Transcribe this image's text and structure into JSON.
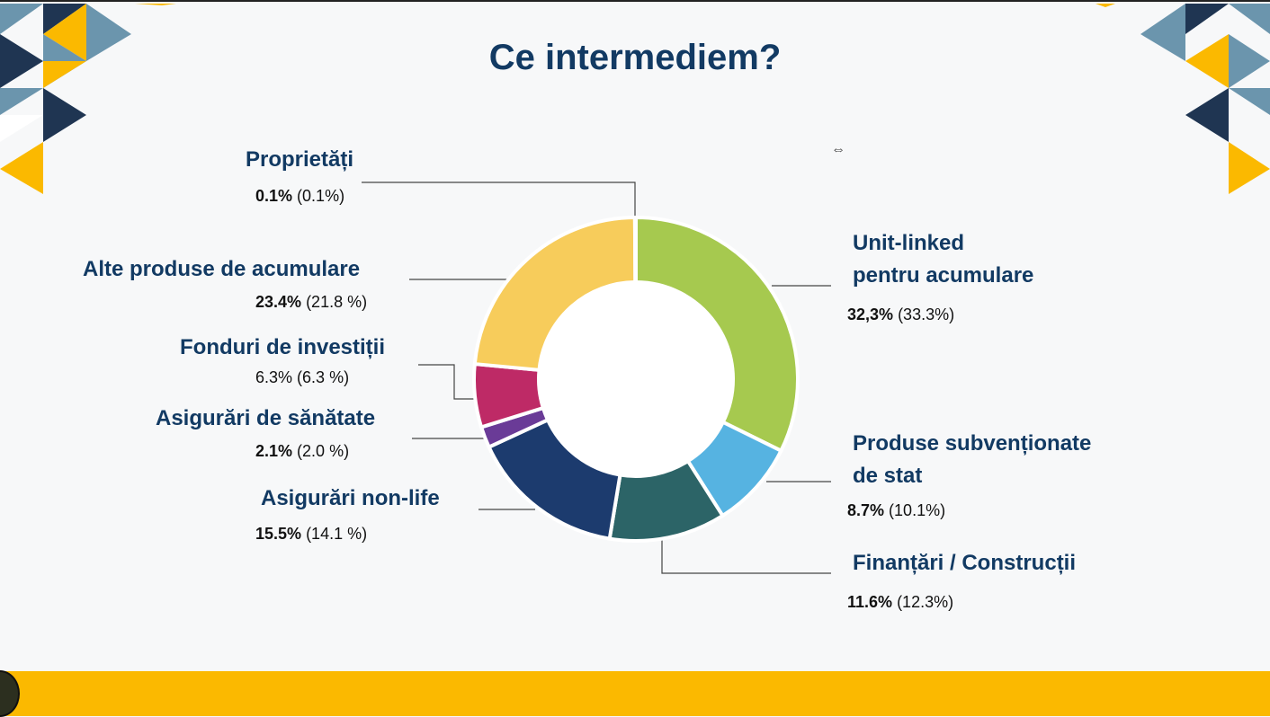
{
  "slide": {
    "title": "Ce intermediem?"
  },
  "colors": {
    "dark_navy": "#1f3552",
    "steel_blue": "#6b95ad",
    "gold": "#fbb900",
    "title": "#123a63"
  },
  "chart_data": {
    "type": "pie",
    "donut": true,
    "title": "Ce intermediem?",
    "series": [
      {
        "label_lines": [
          "Unit-linked",
          "pentru acumulare"
        ],
        "value": 32.3,
        "value_text": "32,3%",
        "prev_text": "(33.3%)",
        "color": "#a6c94f"
      },
      {
        "label_lines": [
          "Produse subvenționate",
          "de stat"
        ],
        "value": 8.7,
        "value_text": "8.7%",
        "prev_text": "(10.1%)",
        "color": "#56b3e1"
      },
      {
        "label_lines": [
          "Finanțări / Construcții"
        ],
        "value": 11.6,
        "value_text": "11.6%",
        "prev_text": "(12.3%)",
        "color": "#2c6467"
      },
      {
        "label_lines": [
          "Asigurări non-life"
        ],
        "value": 15.5,
        "value_text": "15.5%",
        "prev_text": "(14.1 %)",
        "color": "#1c3b6e"
      },
      {
        "label_lines": [
          "Asigurări de sănătate"
        ],
        "value": 2.1,
        "value_text": "2.1%",
        "prev_text": "(2.0 %)",
        "color": "#6a3b97"
      },
      {
        "label_lines": [
          "Fonduri de investiții"
        ],
        "value": 6.3,
        "value_text": "6.3%",
        "prev_text": "(6.3 %)",
        "color": "#be2a66"
      },
      {
        "label_lines": [
          "Alte produse de acumulare"
        ],
        "value": 23.4,
        "value_text": "23.4%",
        "prev_text": "(21.8 %)",
        "color": "#f7cc5b"
      },
      {
        "label_lines": [
          "Proprietăți"
        ],
        "value": 0.1,
        "value_text": "0.1%",
        "prev_text": "(0.1%)",
        "color": "#cfd5db"
      }
    ]
  }
}
